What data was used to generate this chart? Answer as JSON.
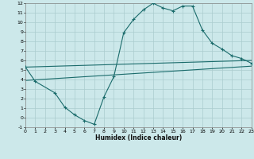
{
  "xlabel": "Humidex (Indice chaleur)",
  "bg_color": "#cce8ea",
  "grid_color": "#aaccce",
  "line_color": "#1a6b6b",
  "xlim": [
    0,
    23
  ],
  "ylim": [
    -1,
    12
  ],
  "xticks": [
    0,
    1,
    2,
    3,
    4,
    5,
    6,
    7,
    8,
    9,
    10,
    11,
    12,
    13,
    14,
    15,
    16,
    17,
    18,
    19,
    20,
    21,
    22,
    23
  ],
  "yticks": [
    -1,
    0,
    1,
    2,
    3,
    4,
    5,
    6,
    7,
    8,
    9,
    10,
    11,
    12
  ],
  "curve_x": [
    0,
    1,
    3,
    4,
    5,
    6,
    7,
    8,
    9,
    10,
    11,
    12,
    13,
    14,
    15,
    16,
    17,
    18,
    19,
    20,
    21,
    22,
    23
  ],
  "curve_y": [
    5.3,
    3.8,
    2.6,
    1.1,
    0.3,
    -0.3,
    -0.7,
    2.2,
    4.3,
    8.9,
    10.3,
    11.3,
    12.0,
    11.5,
    11.2,
    11.7,
    11.7,
    9.2,
    7.8,
    7.2,
    6.5,
    6.2,
    5.7
  ],
  "line1_x": [
    0,
    23
  ],
  "line1_y": [
    5.3,
    6.0
  ],
  "line2_x": [
    0,
    23
  ],
  "line2_y": [
    3.9,
    5.4
  ]
}
